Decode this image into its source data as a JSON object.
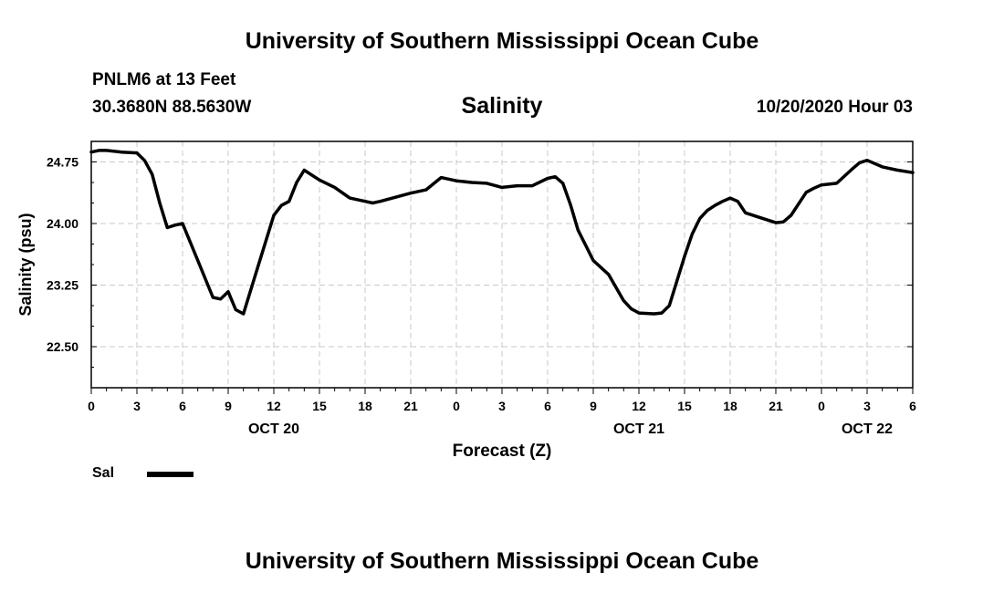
{
  "header": {
    "title": "University of Southern Mississippi Ocean Cube",
    "station": "PNLM6 at 13 Feet",
    "coords": "30.3680N 88.5630W",
    "timestamp": "10/20/2020 Hour 03",
    "footer_title": "University of Southern Mississippi Ocean Cube"
  },
  "chart_data": {
    "type": "line",
    "title": "Salinity",
    "xlabel": "Forecast (Z)",
    "ylabel": "Salinity (psu)",
    "x_unit": "forecast hour",
    "xlim": [
      0,
      54
    ],
    "ylim": [
      22.0,
      25.0
    ],
    "yticks": [
      22.5,
      23.25,
      24.0,
      24.75
    ],
    "ytick_labels": [
      "22.50",
      "23.25",
      "24.00",
      "24.75"
    ],
    "xticks": [
      {
        "x": 0,
        "label": "0"
      },
      {
        "x": 3,
        "label": "3"
      },
      {
        "x": 6,
        "label": "6"
      },
      {
        "x": 9,
        "label": "9"
      },
      {
        "x": 12,
        "label": "12"
      },
      {
        "x": 15,
        "label": "15"
      },
      {
        "x": 18,
        "label": "18"
      },
      {
        "x": 21,
        "label": "21"
      },
      {
        "x": 24,
        "label": "0"
      },
      {
        "x": 27,
        "label": "3"
      },
      {
        "x": 30,
        "label": "6"
      },
      {
        "x": 33,
        "label": "9"
      },
      {
        "x": 36,
        "label": "12"
      },
      {
        "x": 39,
        "label": "15"
      },
      {
        "x": 42,
        "label": "18"
      },
      {
        "x": 45,
        "label": "21"
      },
      {
        "x": 48,
        "label": "0"
      },
      {
        "x": 51,
        "label": "3"
      },
      {
        "x": 54,
        "label": "6"
      }
    ],
    "day_labels": [
      {
        "x": 12,
        "label": "OCT 20"
      },
      {
        "x": 36,
        "label": "OCT 21"
      },
      {
        "x": 51,
        "label": "OCT 22"
      }
    ],
    "grid": true,
    "legend": "bottom-left",
    "series": [
      {
        "name": "Sal",
        "color": "#000000",
        "points": [
          [
            0,
            24.87
          ],
          [
            0.5,
            24.89
          ],
          [
            1,
            24.89
          ],
          [
            2,
            24.87
          ],
          [
            3,
            24.86
          ],
          [
            3.5,
            24.77
          ],
          [
            4,
            24.6
          ],
          [
            4.5,
            24.25
          ],
          [
            5,
            23.95
          ],
          [
            5.5,
            23.98
          ],
          [
            6,
            24.0
          ],
          [
            7,
            23.55
          ],
          [
            8,
            23.1
          ],
          [
            8.5,
            23.08
          ],
          [
            9,
            23.17
          ],
          [
            9.5,
            22.95
          ],
          [
            10,
            22.9
          ],
          [
            11,
            23.5
          ],
          [
            12,
            24.1
          ],
          [
            12.5,
            24.22
          ],
          [
            13,
            24.27
          ],
          [
            13.5,
            24.5
          ],
          [
            14,
            24.65
          ],
          [
            15,
            24.53
          ],
          [
            16,
            24.44
          ],
          [
            17,
            24.31
          ],
          [
            18,
            24.27
          ],
          [
            18.5,
            24.25
          ],
          [
            19,
            24.27
          ],
          [
            20,
            24.32
          ],
          [
            21,
            24.37
          ],
          [
            22,
            24.41
          ],
          [
            23,
            24.56
          ],
          [
            24,
            24.52
          ],
          [
            25,
            24.5
          ],
          [
            26,
            24.49
          ],
          [
            27,
            24.44
          ],
          [
            28,
            24.46
          ],
          [
            29,
            24.46
          ],
          [
            30,
            24.55
          ],
          [
            30.5,
            24.57
          ],
          [
            31,
            24.49
          ],
          [
            31.5,
            24.23
          ],
          [
            32,
            23.92
          ],
          [
            33,
            23.55
          ],
          [
            34,
            23.38
          ],
          [
            35,
            23.06
          ],
          [
            35.5,
            22.96
          ],
          [
            36,
            22.91
          ],
          [
            37,
            22.9
          ],
          [
            37.5,
            22.91
          ],
          [
            38,
            23.0
          ],
          [
            39,
            23.6
          ],
          [
            39.5,
            23.87
          ],
          [
            40,
            24.06
          ],
          [
            40.5,
            24.16
          ],
          [
            41,
            24.22
          ],
          [
            41.5,
            24.27
          ],
          [
            42,
            24.31
          ],
          [
            42.5,
            24.27
          ],
          [
            43,
            24.13
          ],
          [
            44,
            24.07
          ],
          [
            45,
            24.01
          ],
          [
            45.5,
            24.02
          ],
          [
            46,
            24.1
          ],
          [
            47,
            24.38
          ],
          [
            47.5,
            24.43
          ],
          [
            48,
            24.47
          ],
          [
            49,
            24.49
          ],
          [
            50,
            24.66
          ],
          [
            50.5,
            24.74
          ],
          [
            51,
            24.77
          ],
          [
            52,
            24.69
          ],
          [
            53,
            24.65
          ],
          [
            54,
            24.62
          ]
        ]
      }
    ]
  }
}
